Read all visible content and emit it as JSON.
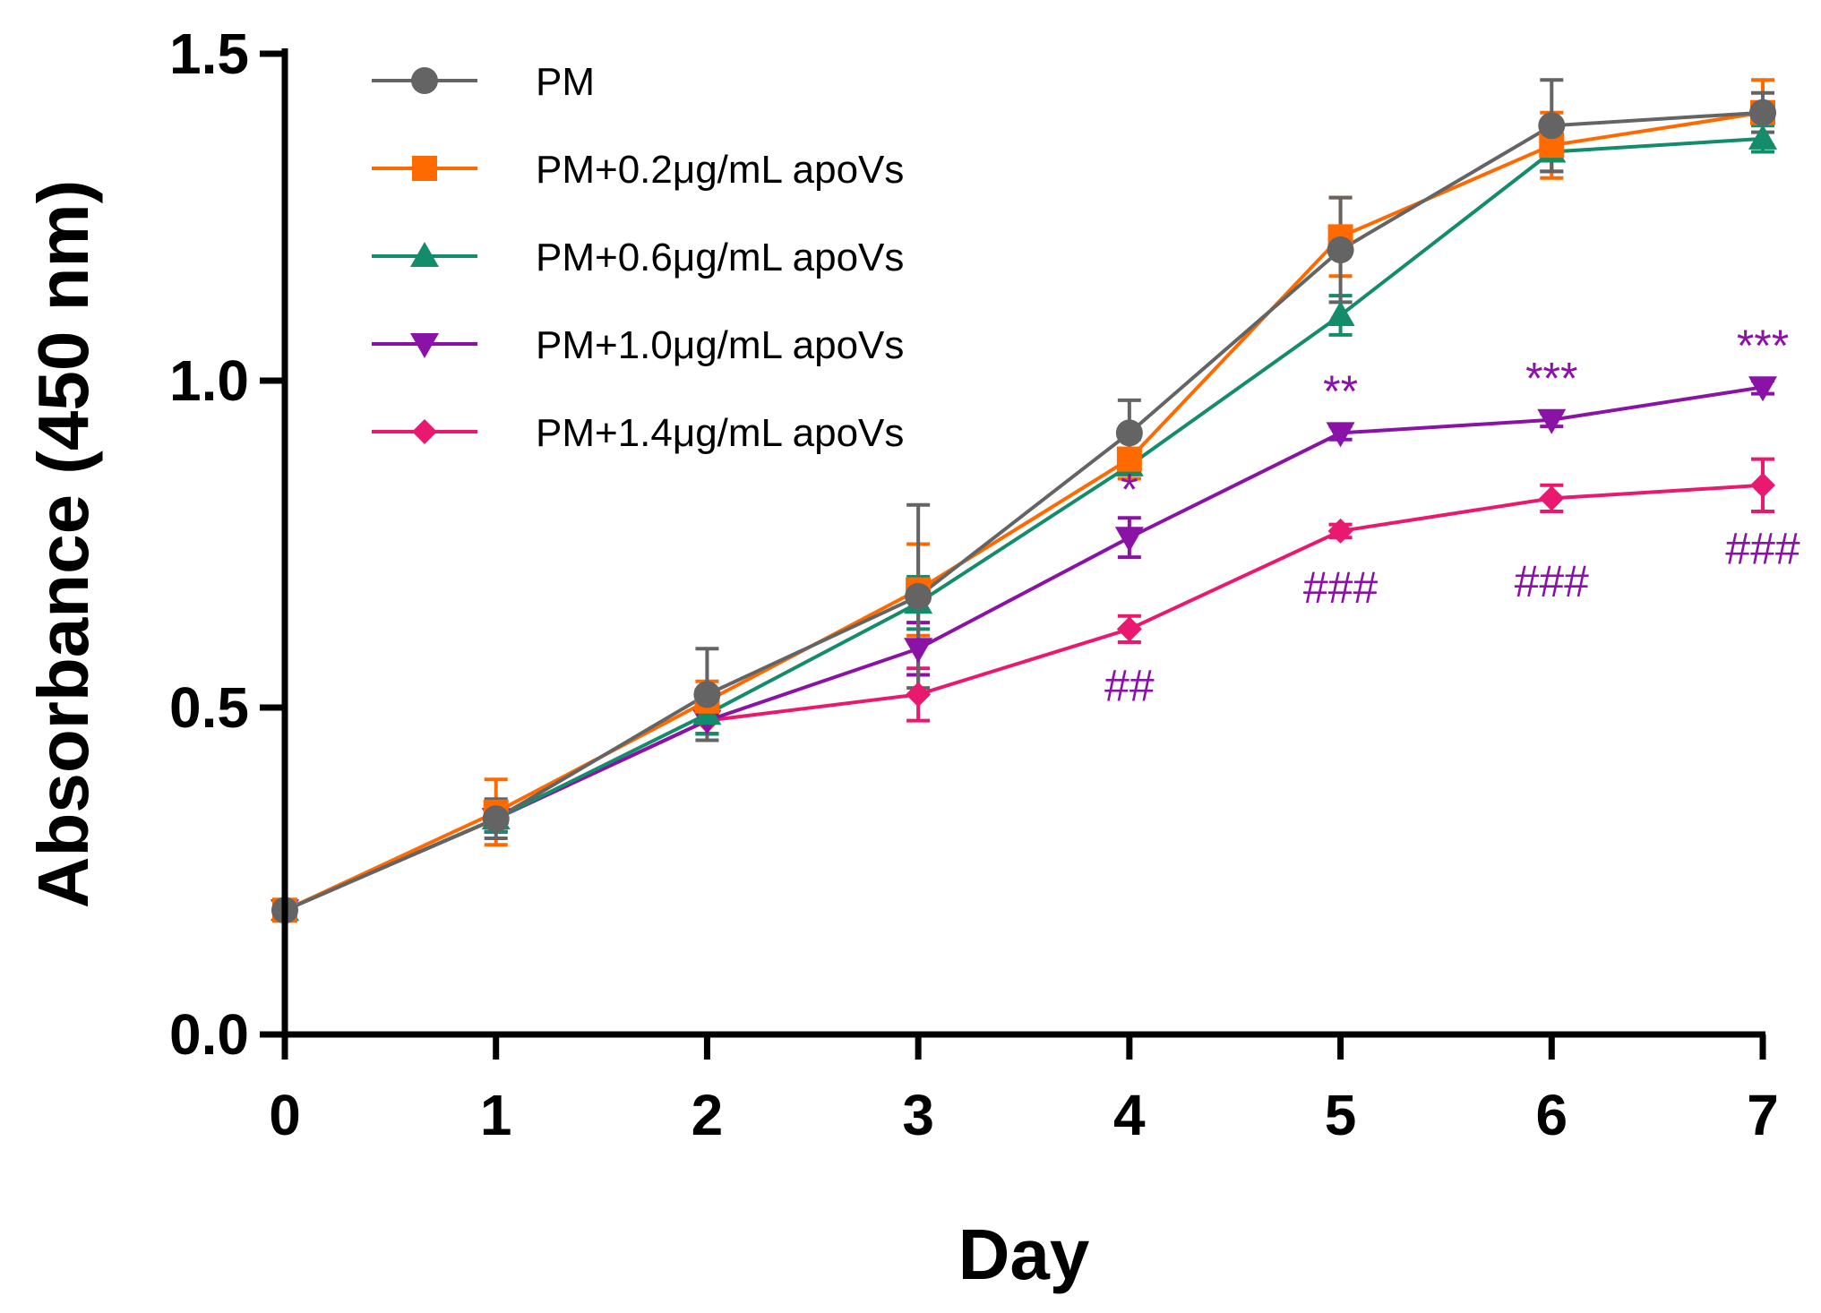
{
  "chart_data": {
    "type": "line",
    "title": "",
    "xlabel": "Day",
    "ylabel": "Absorbance (450 nm)",
    "x": [
      0,
      1,
      2,
      3,
      4,
      5,
      6,
      7
    ],
    "xlim": [
      0,
      7
    ],
    "ylim": [
      0,
      1.5
    ],
    "xticks": [
      "0",
      "1",
      "2",
      "3",
      "4",
      "5",
      "6",
      "7"
    ],
    "yticks": [
      "0.0",
      "0.5",
      "1.0",
      "1.5"
    ],
    "legend_position": "top-left",
    "series": [
      {
        "name": "PM",
        "color": "#646464",
        "marker": "circle",
        "values": [
          0.19,
          0.33,
          0.52,
          0.67,
          0.92,
          1.2,
          1.39,
          1.41
        ],
        "errors": [
          0.0,
          0.03,
          0.07,
          0.14,
          0.05,
          0.08,
          0.07,
          0.03
        ]
      },
      {
        "name": "PM+0.2μg/mL apoVs",
        "color": "#FF6A00",
        "marker": "square",
        "values": [
          0.19,
          0.34,
          0.51,
          0.68,
          0.88,
          1.22,
          1.36,
          1.41
        ],
        "errors": [
          0.0,
          0.05,
          0.03,
          0.07,
          0.03,
          0.06,
          0.05,
          0.05
        ]
      },
      {
        "name": "PM+0.6μg/mL apoVs",
        "color": "#128C6A",
        "marker": "triangle-up",
        "values": [
          0.19,
          0.33,
          0.49,
          0.66,
          0.87,
          1.1,
          1.35,
          1.37
        ],
        "errors": [
          0.0,
          0.02,
          0.03,
          0.04,
          0.02,
          0.03,
          0.03,
          0.02
        ]
      },
      {
        "name": "PM+1.0μg/mL apoVs",
        "color": "#8B12A6",
        "marker": "triangle-down",
        "values": [
          0.19,
          0.33,
          0.48,
          0.59,
          0.76,
          0.92,
          0.94,
          0.99
        ],
        "errors": [
          0.0,
          0.02,
          0.02,
          0.04,
          0.03,
          0.01,
          0.01,
          0.01
        ]
      },
      {
        "name": "PM+1.4μg/mL apoVs",
        "color": "#E8196E",
        "marker": "diamond",
        "values": [
          0.19,
          0.33,
          0.48,
          0.52,
          0.62,
          0.77,
          0.82,
          0.84
        ],
        "errors": [
          0.0,
          0.02,
          0.02,
          0.04,
          0.02,
          0.01,
          0.02,
          0.04
        ]
      }
    ],
    "annotations": [
      {
        "x": 4,
        "y": 0.81,
        "text": "*"
      },
      {
        "x": 5,
        "y": 0.96,
        "text": "**"
      },
      {
        "x": 6,
        "y": 0.98,
        "text": "***"
      },
      {
        "x": 7,
        "y": 1.03,
        "text": "***"
      },
      {
        "x": 4,
        "y": 0.51,
        "text": "##"
      },
      {
        "x": 5,
        "y": 0.66,
        "text": "###"
      },
      {
        "x": 6,
        "y": 0.67,
        "text": "###"
      },
      {
        "x": 7,
        "y": 0.72,
        "text": "###"
      }
    ]
  }
}
